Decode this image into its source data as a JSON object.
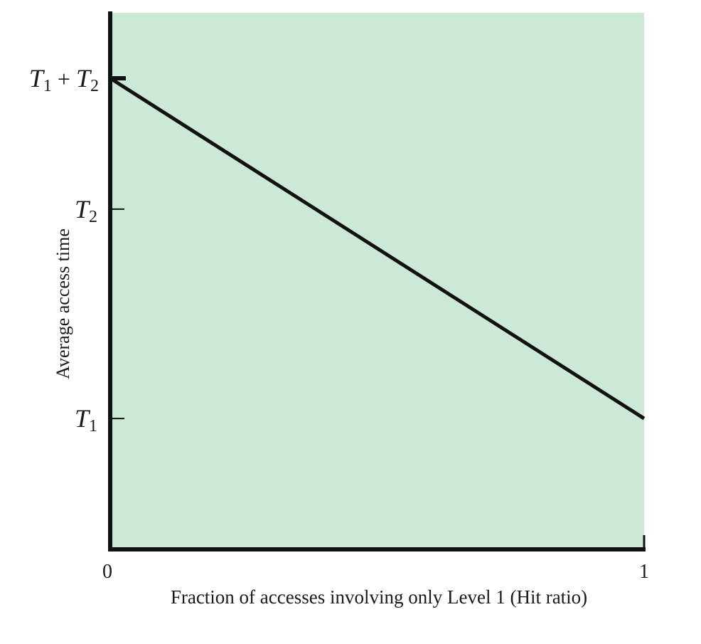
{
  "chart_data": {
    "type": "line",
    "title": "",
    "xlabel": "Fraction of accesses involving only Level 1 (Hit ratio)",
    "ylabel": "Average access time",
    "x_ticks": [
      "0",
      "1"
    ],
    "y_ticks": [
      {
        "id": "t1",
        "label_base": "T",
        "label_sub": "1",
        "value": 1.0
      },
      {
        "id": "t2",
        "label_base": "T",
        "label_sub": "2",
        "value": 2.6
      },
      {
        "id": "t1t2",
        "label_base": "T",
        "label_sub": "1",
        "label_op": "+",
        "label_base2": "T",
        "label_sub2": "2",
        "value": 3.6
      }
    ],
    "ylim": [
      0,
      4.1
    ],
    "xlim": [
      0,
      1
    ],
    "series": [
      {
        "x": [
          0,
          1
        ],
        "y": [
          3.6,
          1.0
        ]
      }
    ],
    "grid": false,
    "legend": "none",
    "colors": {
      "plot_background": "#cce8d6",
      "line": "#111111",
      "axis": "#111111"
    }
  }
}
